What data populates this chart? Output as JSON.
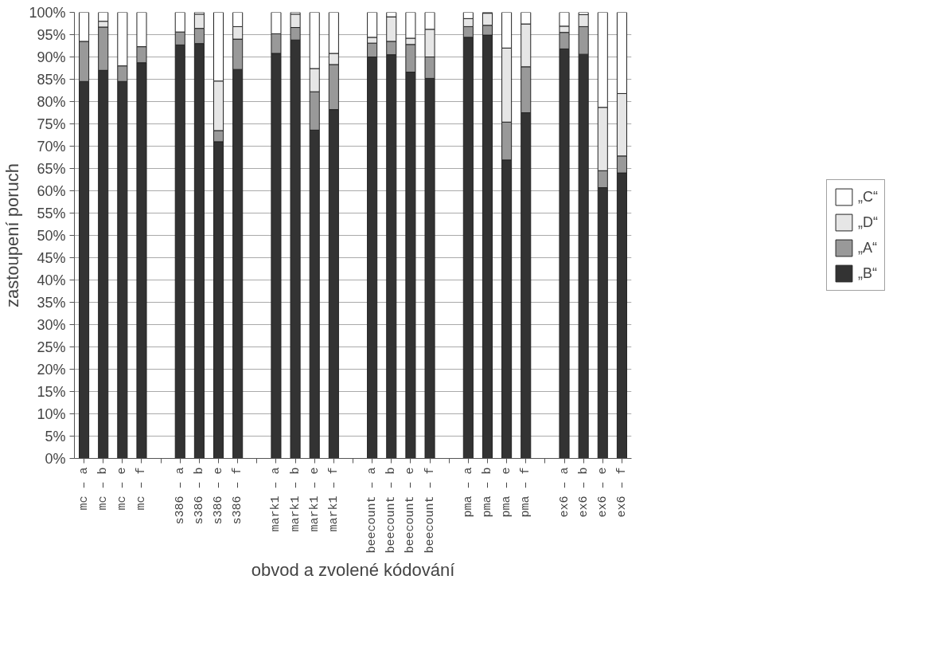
{
  "chart_data": {
    "type": "bar",
    "stacked": true,
    "xlabel": "obvod a zvolené kódování",
    "ylabel": "zastoupení poruch",
    "categories": [
      "mc – a",
      "mc – b",
      "mc – e",
      "mc – f",
      null,
      "s386 – a",
      "s386 – b",
      "s386 – e",
      "s386 – f",
      null,
      "mark1 – a",
      "mark1 – b",
      "mark1 – e",
      "mark1 – f",
      null,
      "beecount – a",
      "beecount – b",
      "beecount – e",
      "beecount – f",
      null,
      "pma – a",
      "pma – b",
      "pma – e",
      "pma – f",
      null,
      "ex6 – a",
      "ex6 – b",
      "ex6 – e",
      "ex6 – f"
    ],
    "series": [
      {
        "name": "„B“",
        "color": "#333333",
        "values": [
          84.5,
          87,
          84.5,
          88.7,
          null,
          92.7,
          93,
          71,
          87.2,
          null,
          90.8,
          93.8,
          73.6,
          78.2,
          null,
          90,
          90.5,
          86.6,
          85.2,
          null,
          94.4,
          94.9,
          66.9,
          77.5,
          null,
          91.8,
          90.6,
          60.7,
          64
        ]
      },
      {
        "name": "„A“",
        "color": "#999999",
        "values": [
          9,
          9.7,
          3.5,
          3.6,
          null,
          2.9,
          3.4,
          2.5,
          6.8,
          null,
          4.4,
          2.8,
          8.6,
          10.1,
          null,
          3.1,
          3,
          6.2,
          4.8,
          null,
          2.4,
          2.2,
          8.5,
          10.3,
          null,
          3.7,
          6.2,
          3.8,
          3.8
        ]
      },
      {
        "name": "„D“",
        "color": "#e6e6e6",
        "values": [
          null,
          1.3,
          null,
          null,
          null,
          null,
          3.2,
          11.1,
          2.8,
          null,
          null,
          3,
          5.2,
          2.5,
          null,
          1.3,
          5.5,
          1.4,
          6.2,
          null,
          1.8,
          2.7,
          16.6,
          9.6,
          null,
          1.4,
          2.7,
          14.2,
          14
        ]
      },
      {
        "name": "„C“",
        "color": "#ffffff",
        "values": [
          6.5,
          2,
          12,
          7.7,
          null,
          4.4,
          0.4,
          15.4,
          3.2,
          null,
          4.8,
          0.4,
          12.6,
          9.2,
          null,
          5.6,
          1,
          5.8,
          3.8,
          null,
          1.4,
          0.2,
          8,
          2.6,
          null,
          3.1,
          0.5,
          21.3,
          18.2
        ]
      }
    ],
    "ylim": [
      0,
      100
    ],
    "yticks": [
      {
        "value": 0,
        "label": "0%"
      },
      {
        "value": 5,
        "label": "5%"
      },
      {
        "value": 10,
        "label": "10%"
      },
      {
        "value": 15,
        "label": "15%"
      },
      {
        "value": 20,
        "label": "20%"
      },
      {
        "value": 25,
        "label": "25%"
      },
      {
        "value": 30,
        "label": "30%"
      },
      {
        "value": 35,
        "label": "35%"
      },
      {
        "value": 40,
        "label": "40%"
      },
      {
        "value": 45,
        "label": "45%"
      },
      {
        "value": 50,
        "label": "50%"
      },
      {
        "value": 55,
        "label": "55%"
      },
      {
        "value": 60,
        "label": "60%"
      },
      {
        "value": 65,
        "label": "65%"
      },
      {
        "value": 70,
        "label": "70%"
      },
      {
        "value": 75,
        "label": "75%"
      },
      {
        "value": 80,
        "label": "80%"
      },
      {
        "value": 85,
        "label": "85%"
      },
      {
        "value": 90,
        "label": "90%"
      },
      {
        "value": 95,
        "label": "95%"
      },
      {
        "value": 100,
        "label": "100%"
      }
    ],
    "grid": "y",
    "legend": "right"
  }
}
